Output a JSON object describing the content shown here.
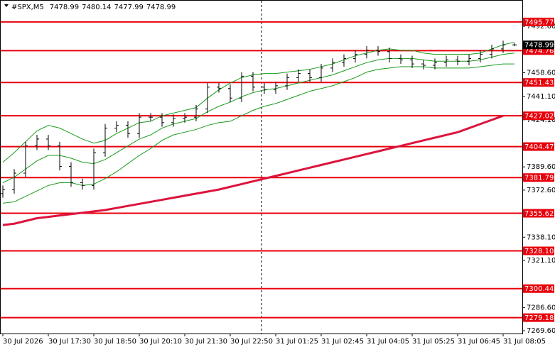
{
  "chart_data": {
    "type": "candlestick",
    "symbol": "#SPX,M5",
    "categories": [
      "30 Jul 2026",
      null,
      null,
      null,
      "30 Jul 17:30",
      null,
      null,
      null,
      "30 Jul 18:50",
      null,
      null,
      null,
      "30 Jul 20:10",
      null,
      null,
      null,
      "30 Jul 21:30",
      null,
      null,
      null,
      "30 Jul 22:50",
      null,
      null,
      null,
      "31 Jul 01:25",
      null,
      null,
      null,
      "31 Jul 02:45",
      null,
      null,
      null,
      "31 Jul 04:05",
      null,
      null,
      null,
      "31 Jul 05:25",
      null,
      null,
      null,
      "31 Jul 06:45",
      null,
      null,
      null,
      "31 Jul 08:05",
      null
    ],
    "open": [
      7370,
      7373,
      7385,
      7405,
      7410,
      7405,
      7390,
      7378,
      7376,
      7400,
      7418,
      7420,
      7414,
      7426,
      7426,
      7422,
      7425,
      7426,
      7432,
      7448,
      7447,
      7440,
      7456,
      7448,
      7446,
      7449,
      7455,
      7458,
      7455,
      7462,
      7466,
      7469,
      7472,
      7475,
      7474,
      7469,
      7468,
      7465,
      7464,
      7466,
      7468,
      7467,
      7469,
      7472,
      7476,
      7478.99
    ],
    "high": [
      7376,
      7388,
      7408,
      7413,
      7413,
      7408,
      7393,
      7381,
      7403,
      7421,
      7423,
      7423,
      7429,
      7429,
      7429,
      7428,
      7429,
      7435,
      7451,
      7451,
      7450,
      7459,
      7459,
      7451,
      7452,
      7458,
      7461,
      7461,
      7465,
      7469,
      7472,
      7475,
      7478,
      7478,
      7477,
      7472,
      7471,
      7468,
      7469,
      7471,
      7471,
      7472,
      7475,
      7479,
      7482,
      7480.14
    ],
    "low": [
      7367,
      7370,
      7382,
      7402,
      7402,
      7387,
      7375,
      7373,
      7373,
      7397,
      7415,
      7411,
      7411,
      7423,
      7419,
      7419,
      7422,
      7423,
      7429,
      7444,
      7437,
      7437,
      7445,
      7443,
      7443,
      7446,
      7452,
      7452,
      7452,
      7459,
      7463,
      7466,
      7469,
      7471,
      7466,
      7465,
      7462,
      7461,
      7461,
      7463,
      7464,
      7464,
      7466,
      7469,
      7473,
      7477.99
    ],
    "close": [
      7373,
      7385,
      7405,
      7410,
      7405,
      7390,
      7378,
      7376,
      7400,
      7418,
      7420,
      7414,
      7426,
      7426,
      7422,
      7425,
      7426,
      7432,
      7448,
      7447,
      7440,
      7456,
      7448,
      7446,
      7449,
      7455,
      7458,
      7455,
      7462,
      7466,
      7469,
      7472,
      7475,
      7474,
      7469,
      7468,
      7465,
      7464,
      7466,
      7468,
      7467,
      7469,
      7472,
      7476,
      7479,
      7478.99
    ],
    "candle_color": "#000000",
    "series": [
      {
        "color": "#1a9a1a",
        "width": 1,
        "values": [
          7393,
          7400,
          7408,
          7416,
          7420,
          7418,
          7414,
          7410,
          7407,
          7409,
          7414,
          7418,
          7422,
          7423,
          7427,
          7429,
          7431,
          7433,
          7440,
          7446,
          7451,
          7455,
          7457,
          7458,
          7458,
          7459,
          7460,
          7461,
          7463,
          7465,
          7468,
          7471,
          7473,
          7475,
          7476,
          7475,
          7475,
          7473,
          7472,
          7472,
          7472,
          7472,
          7473,
          7476,
          7479,
          7481
        ]
      },
      {
        "color": "#1a9a1a",
        "width": 1,
        "values": [
          7378,
          7382,
          7388,
          7394,
          7398,
          7398,
          7396,
          7393,
          7392,
          7395,
          7400,
          7405,
          7410,
          7413,
          7418,
          7421,
          7423,
          7425,
          7430,
          7434,
          7437,
          7441,
          7444,
          7446,
          7447,
          7449,
          7451,
          7453,
          7455,
          7457,
          7460,
          7463,
          7466,
          7468,
          7469,
          7469,
          7469,
          7468,
          7467,
          7467,
          7467,
          7467,
          7468,
          7470,
          7472,
          7473
        ]
      },
      {
        "color": "#1a9a1a",
        "width": 1,
        "values": [
          7363,
          7364,
          7368,
          7372,
          7376,
          7378,
          7378,
          7376,
          7377,
          7381,
          7386,
          7392,
          7398,
          7403,
          7409,
          7413,
          7415,
          7417,
          7420,
          7422,
          7423,
          7427,
          7431,
          7434,
          7436,
          7439,
          7442,
          7445,
          7447,
          7449,
          7452,
          7455,
          7459,
          7461,
          7462,
          7463,
          7463,
          7463,
          7462,
          7462,
          7462,
          7462,
          7463,
          7464,
          7465,
          7465
        ]
      },
      {
        "color": "#dc143c",
        "width": 3,
        "values": [
          7347,
          7348,
          7350,
          7352,
          7353,
          7354,
          7355,
          7356,
          7357,
          7358,
          7359.5,
          7361,
          7362.5,
          7364,
          7365.5,
          7367,
          7368.5,
          7370,
          7371.5,
          7373,
          7375,
          7377,
          7379,
          7381,
          7383,
          7385,
          7387,
          7389,
          7391,
          7393,
          7395,
          7397,
          7399,
          7401,
          7403,
          7405,
          7407,
          7409,
          7411,
          7413,
          7415,
          7418,
          7421,
          7424,
          7427,
          null
        ]
      }
    ],
    "levels": {
      "color": "#e8000b",
      "values": [
        7495.77,
        7474.76,
        7451.43,
        7427.02,
        7404.47,
        7381.79,
        7355.62,
        7328.1,
        7300.44,
        7279.18
      ],
      "value_labels": [
        "7495.77",
        "7474.76",
        "7451.43",
        "7427.02",
        "7404.47",
        "7381.79",
        "7355.62",
        "7328.10",
        "7300.44",
        "7279.18"
      ]
    },
    "ylim": [
      7267.55,
      7511.83
    ],
    "yticks": [
      {
        "value": 7492.6,
        "label": "7492.60"
      },
      {
        "value": 7458.6,
        "label": "7458.60"
      },
      {
        "value": 7441.1,
        "label": "7441.10"
      },
      {
        "value": 7424.1,
        "label": "7424.10"
      },
      {
        "value": 7389.6,
        "label": "7389.60"
      },
      {
        "value": 7372.6,
        "label": "7372.60"
      },
      {
        "value": 7338.1,
        "label": "7338.10"
      },
      {
        "value": 7321.1,
        "label": "7321.10"
      },
      {
        "value": 7286.6,
        "label": "7286.60"
      },
      {
        "value": 7269.6,
        "label": "7269.60"
      }
    ]
  }
}
